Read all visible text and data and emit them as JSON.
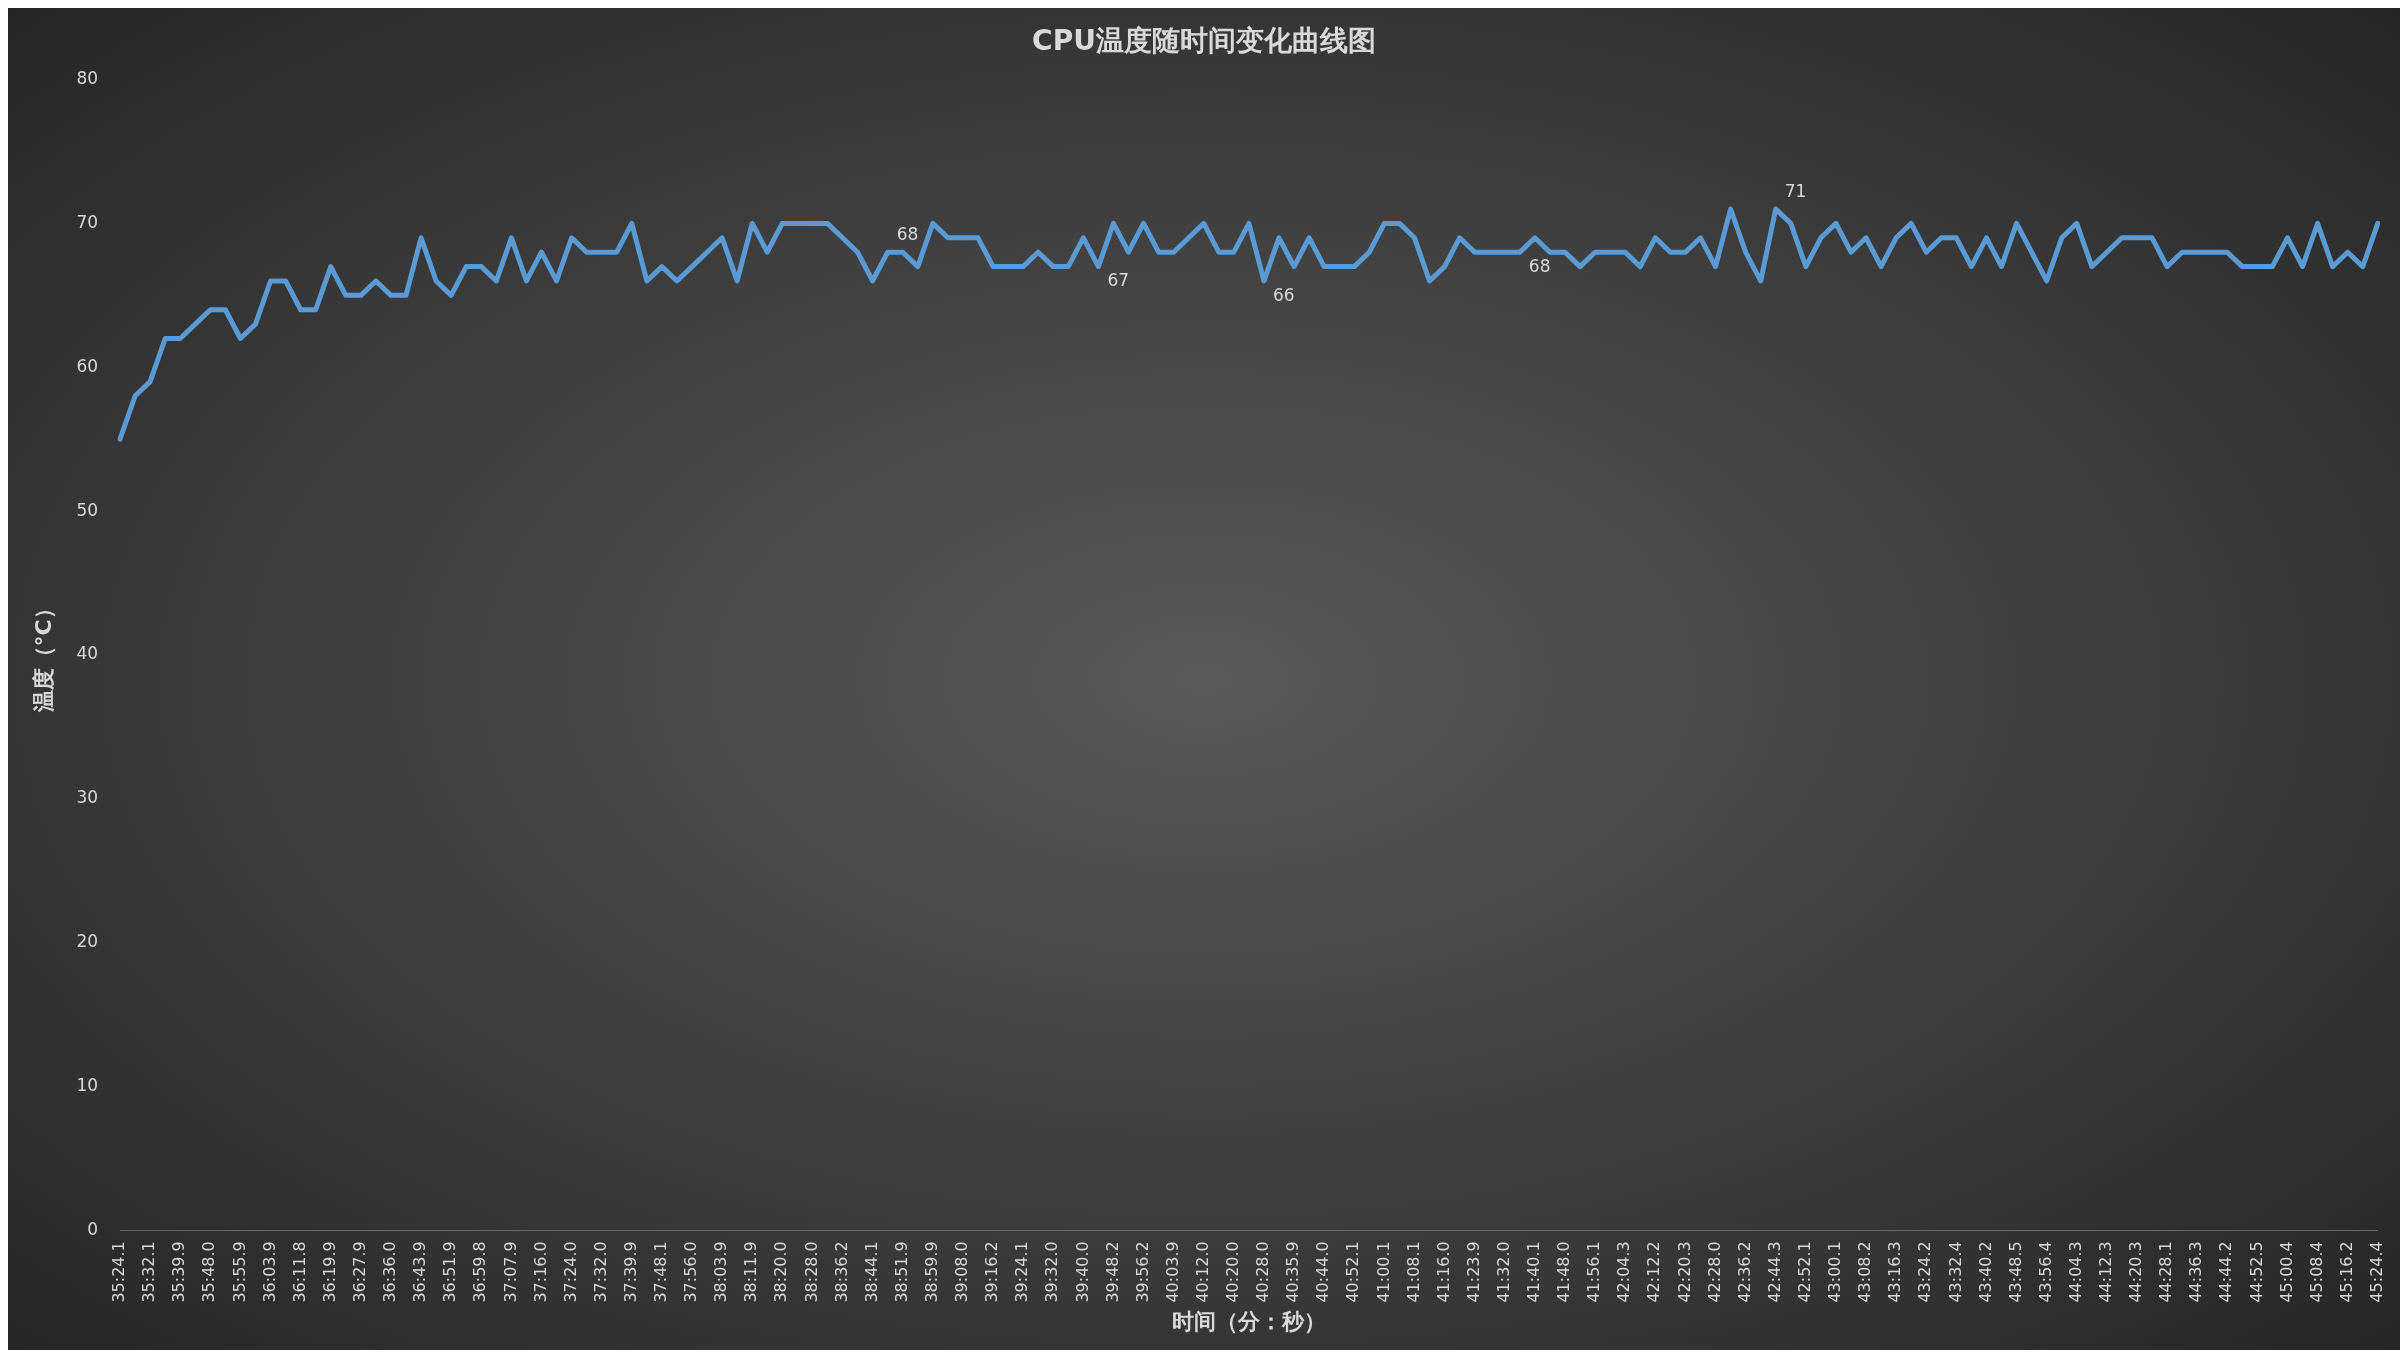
{
  "chart_data": {
    "type": "line",
    "title": "CPU温度随时间变化曲线图",
    "xlabel": "时间（分：秒）",
    "ylabel": "温度（°C）",
    "categories": [
      "35:24.1",
      null,
      "35:32.1",
      null,
      "35:39.9",
      null,
      "35:48.0",
      null,
      "35:55.9",
      null,
      "36:03.9",
      null,
      "36:11.8",
      null,
      "36:19.9",
      null,
      "36:27.9",
      null,
      "36:36.0",
      null,
      "36:43.9",
      null,
      "36:51.9",
      null,
      "36:59.8",
      null,
      "37:07.9",
      null,
      "37:16.0",
      null,
      "37:24.0",
      null,
      "37:32.0",
      null,
      "37:39.9",
      null,
      "37:48.1",
      null,
      "37:56.0",
      null,
      "38:03.9",
      null,
      "38:11.9",
      null,
      "38:20.0",
      null,
      "38:28.0",
      null,
      "38:36.2",
      null,
      "38:44.1",
      null,
      "38:51.9",
      null,
      "38:59.9",
      null,
      "39:08.0",
      null,
      "39:16.2",
      null,
      "39:24.1",
      null,
      "39:32.0",
      null,
      "39:40.0",
      null,
      "39:48.2",
      null,
      "39:56.2",
      null,
      "40:03.9",
      null,
      "40:12.0",
      null,
      "40:20.0",
      null,
      "40:28.0",
      null,
      "40:35.9",
      null,
      "40:44.0",
      null,
      "40:52.1",
      null,
      "41:00.1",
      null,
      "41:08.1",
      null,
      "41:16.0",
      null,
      "41:23.9",
      null,
      "41:32.0",
      null,
      "41:40.1",
      null,
      "41:48.0",
      null,
      "41:56.1",
      null,
      "42:04.3",
      null,
      "42:12.2",
      null,
      "42:20.3",
      null,
      "42:28.0",
      null,
      "42:36.2",
      null,
      "42:44.3",
      null,
      "42:52.1",
      null,
      "43:00.1",
      null,
      "43:08.2",
      null,
      "43:16.3",
      null,
      "43:24.2",
      null,
      "43:32.4",
      null,
      "43:40.2",
      null,
      "43:48.5",
      null,
      "43:56.4",
      null,
      "44:04.3",
      null,
      "44:12.3",
      null,
      "44:20.3",
      null,
      "44:28.1",
      null,
      "44:36.3",
      null,
      "44:44.2",
      null,
      "44:52.5",
      null,
      "45:00.4",
      null,
      "45:08.4",
      null,
      "45:16.2",
      null,
      "45:24.4"
    ],
    "series": [
      {
        "color": "#5b9bd5",
        "values": [
          55,
          58,
          59,
          62,
          62,
          63,
          64,
          64,
          62,
          63,
          66,
          66,
          64,
          64,
          67,
          65,
          65,
          66,
          65,
          65,
          69,
          66,
          65,
          67,
          67,
          66,
          69,
          66,
          68,
          66,
          69,
          68,
          68,
          68,
          70,
          66,
          67,
          66,
          67,
          68,
          69,
          66,
          70,
          68,
          70,
          70,
          70,
          70,
          69,
          68,
          66,
          68,
          68,
          67,
          70,
          69,
          69,
          69,
          67,
          67,
          67,
          68,
          67,
          67,
          69,
          67,
          70,
          68,
          70,
          68,
          68,
          69,
          70,
          68,
          68,
          70,
          66,
          69,
          67,
          69,
          67,
          67,
          67,
          68,
          70,
          70,
          69,
          66,
          67,
          69,
          68,
          68,
          68,
          68,
          69,
          68,
          68,
          67,
          68,
          68,
          68,
          67,
          69,
          68,
          68,
          69,
          67,
          71,
          68,
          66,
          71,
          70,
          67,
          69,
          70,
          68,
          69,
          67,
          69,
          70,
          68,
          69,
          69,
          67,
          69,
          67,
          70,
          68,
          66,
          69,
          70,
          67,
          68,
          69,
          69,
          69,
          67,
          68,
          68,
          68,
          68,
          67,
          67,
          67,
          69,
          67,
          70,
          67,
          68,
          67,
          70
        ],
        "value_labels": [
          null,
          null,
          null,
          null,
          null,
          null,
          null,
          null,
          null,
          null,
          null,
          null,
          null,
          null,
          null,
          null,
          null,
          null,
          null,
          null,
          null,
          null,
          null,
          null,
          null,
          null,
          null,
          null,
          null,
          null,
          null,
          null,
          null,
          null,
          null,
          null,
          null,
          null,
          null,
          null,
          null,
          null,
          null,
          null,
          null,
          null,
          null,
          null,
          null,
          null,
          null,
          "68",
          null,
          null,
          null,
          null,
          null,
          null,
          null,
          null,
          null,
          null,
          null,
          null,
          null,
          "67",
          null,
          null,
          null,
          null,
          null,
          null,
          null,
          null,
          null,
          null,
          "66",
          null,
          null,
          null,
          null,
          null,
          null,
          null,
          null,
          null,
          null,
          null,
          null,
          null,
          null,
          null,
          null,
          "68",
          null,
          null,
          null,
          null,
          null,
          null,
          null,
          null,
          null,
          null,
          null,
          null,
          null,
          null,
          null,
          null,
          "71",
          null,
          null,
          null,
          null,
          null,
          null,
          null,
          null,
          null,
          null,
          null,
          null,
          null,
          null,
          null,
          null,
          null,
          null,
          null,
          null,
          null,
          null,
          null,
          null,
          null,
          null,
          null,
          null,
          null,
          null,
          null,
          null,
          null,
          null,
          null,
          null,
          null,
          null,
          null,
          null
        ]
      }
    ],
    "ylim": [
      0,
      80
    ],
    "yticks": [
      0,
      10,
      20,
      30,
      40,
      50,
      60,
      70,
      80
    ],
    "grid": false,
    "legend": false,
    "marker": "none",
    "line_style": "solid"
  }
}
